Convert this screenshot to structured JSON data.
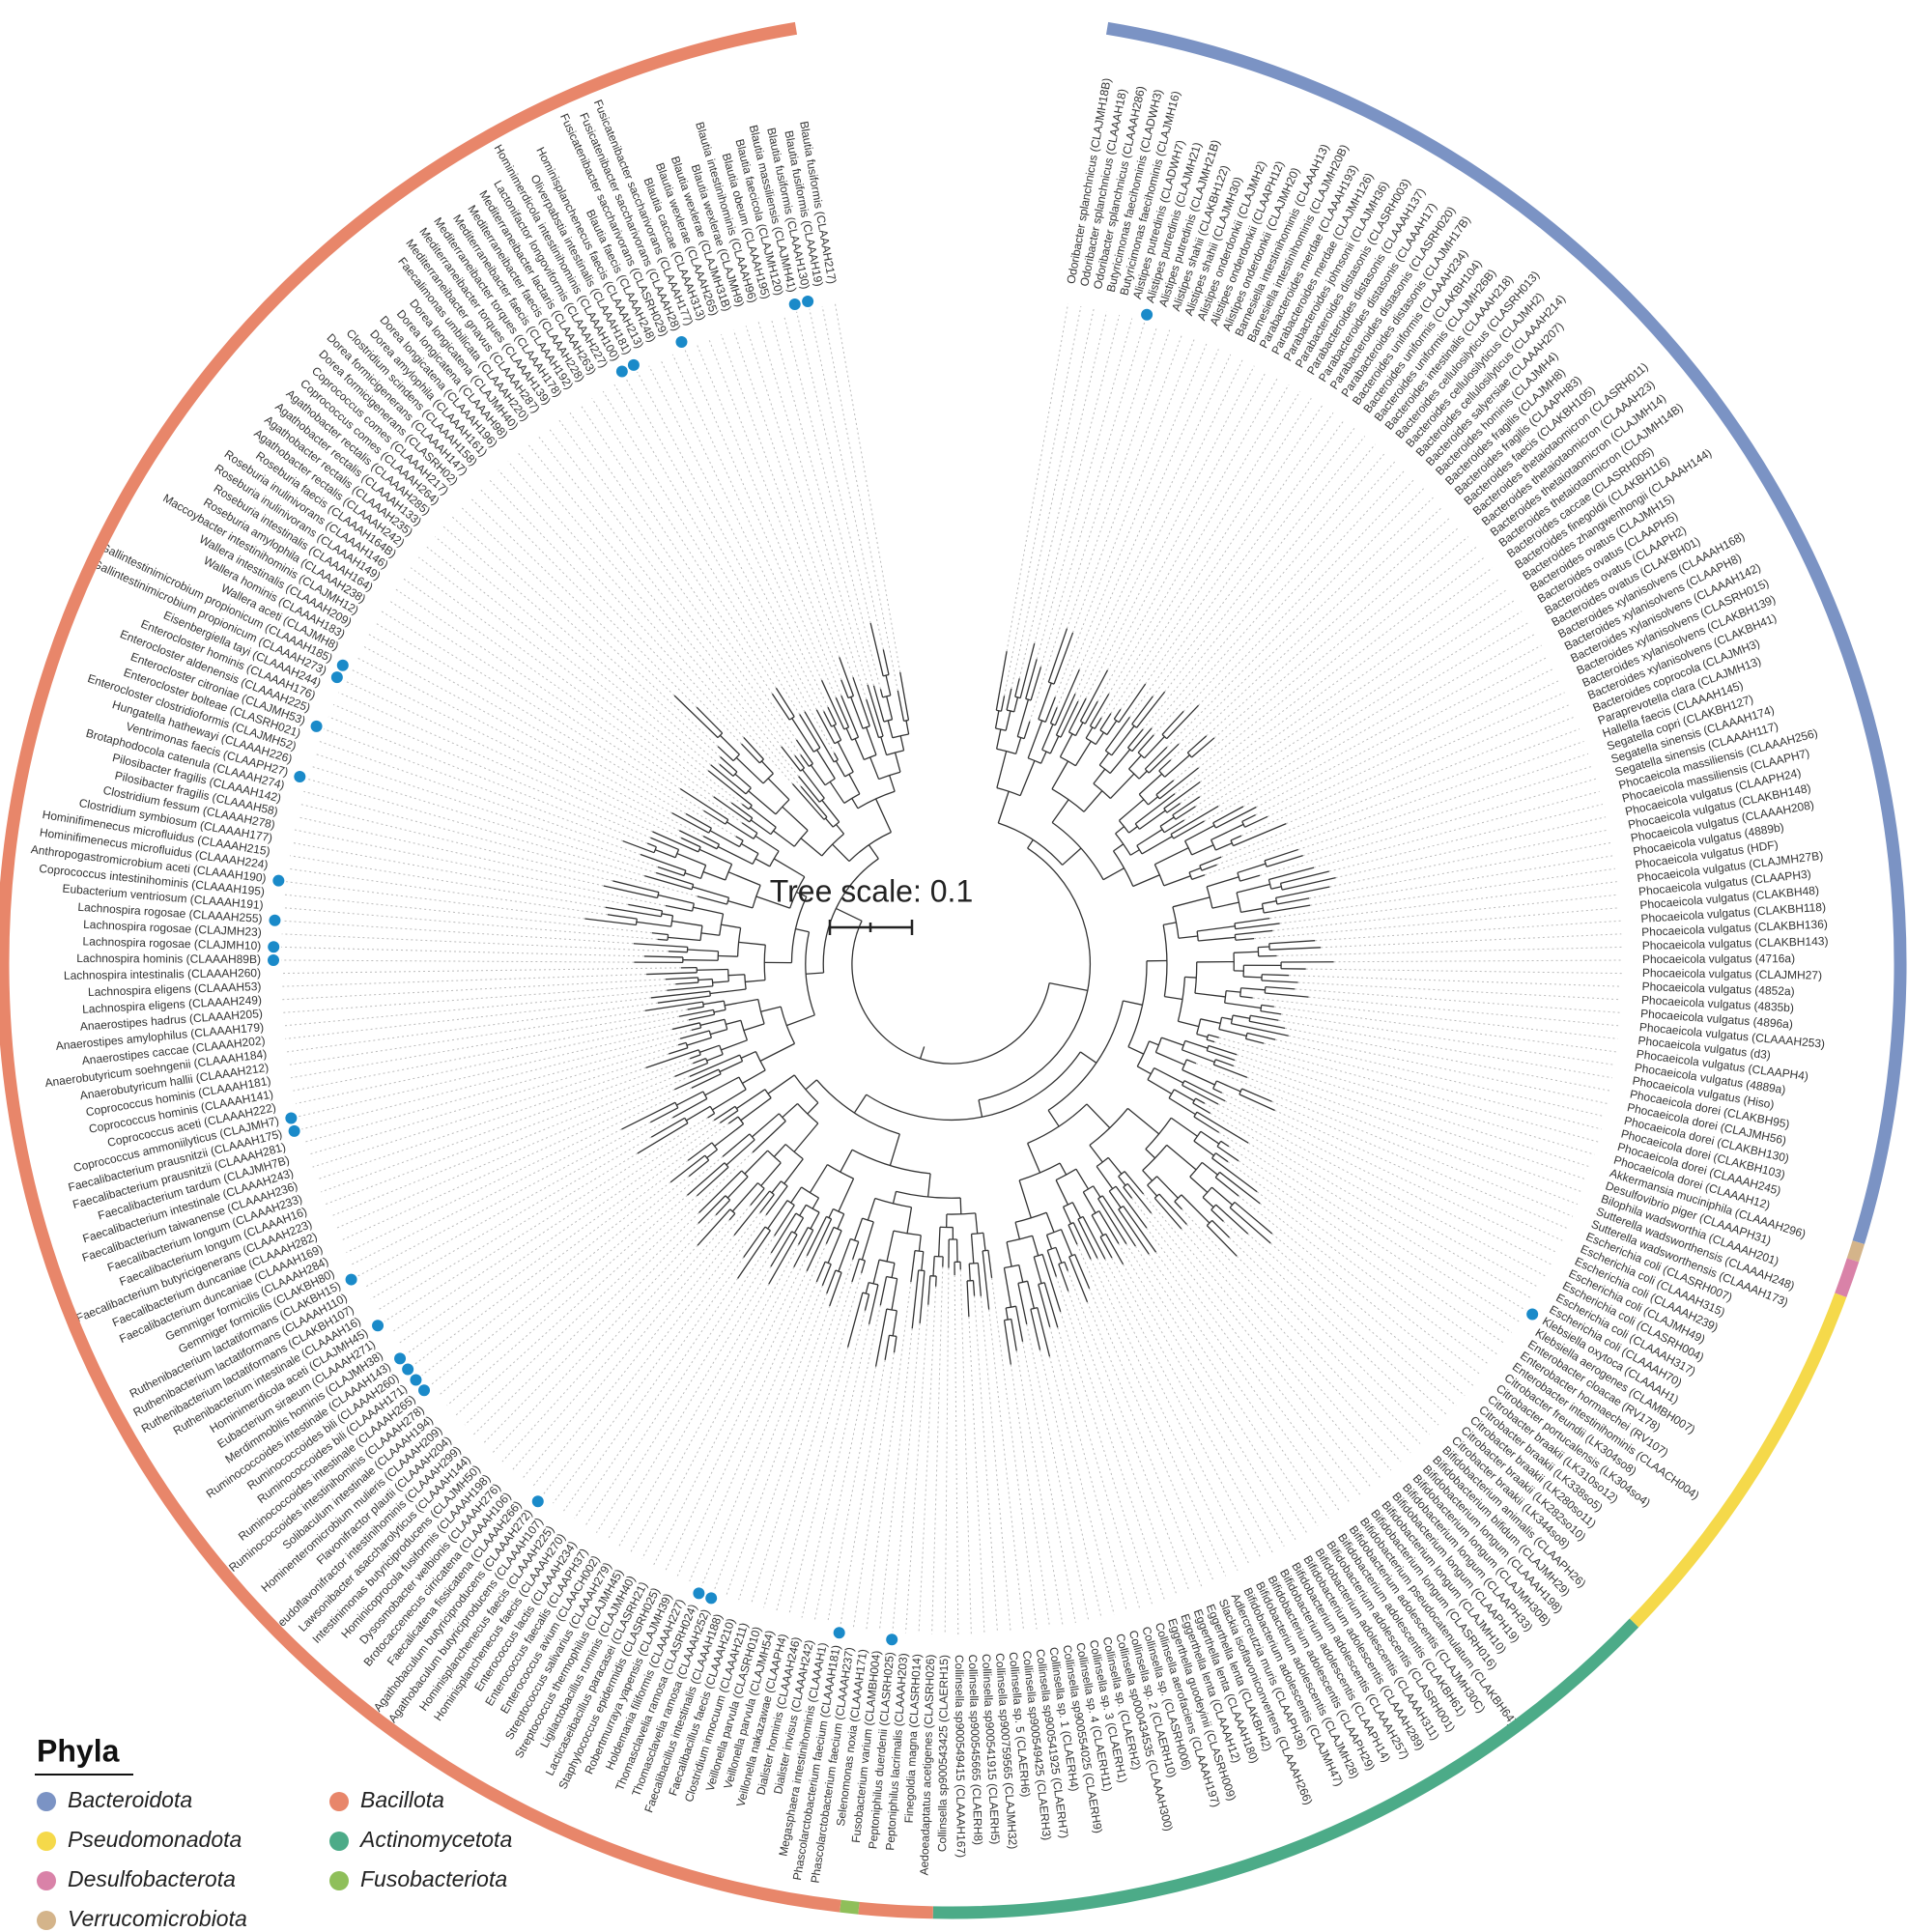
{
  "tree_scale": "Tree scale: 0.1",
  "legend": {
    "title": "Phyla",
    "phyla": [
      {
        "name": "Bacteroidota",
        "color": "#7b93c4"
      },
      {
        "name": "Bacillota",
        "color": "#e8866a"
      },
      {
        "name": "Pseudomonadota",
        "color": "#f5d94a"
      },
      {
        "name": "Actinomycetota",
        "color": "#4cab88"
      },
      {
        "name": "Desulfobacterota",
        "color": "#d982a8"
      },
      {
        "name": "Fusobacteriota",
        "color": "#8fbf5a"
      },
      {
        "name": "Verrucomicrobiota",
        "color": "#d4b48a"
      }
    ]
  },
  "leaf_groups": [
    {
      "phylum": "Bacteroidota",
      "leaves": [
        "Odoribacter splanchnicus (CLAJMH18B)",
        "Odoribacter splanchnicus (CLAAAH18)",
        "Odoribacter splanchnicus (CLAAAH286)",
        "Butyricimonas faecihominis (CLADWH3)",
        "Butyricimonas faecihominis (CLAJMH16)",
        "Alistipes putredinis (CLADWH7)",
        {
          "label": "Alistipes putredinis (CLAJMH21)",
          "dot": true
        },
        "Alistipes putredinis (CLAJMH21B)",
        "Alistipes shahii (CLAKBH122)",
        "Alistipes shahii (CLAJMH30)",
        "Alistipes onderdonkii (CLAJMH2)",
        "Alistipes onderdonkii (CLAAPH12)",
        "Alistipes onderdonkii (CLAJMH20)",
        "Barnesiella intestinihominis (CLAAAH13)",
        "Barnesiella intestinihominis (CLAJMH20B)",
        "Parabacteroides merdae (CLAAAH193)",
        "Parabacteroides merdae (CLAJMH126)",
        "Parabacteroides johnsonii (CLAJMH36)",
        "Parabacteroides distasonis (CLASRH003)",
        "Parabacteroides distasonis (CLAAAH137)",
        "Parabacteroides distasonis (CLAAAH17)",
        "Parabacteroides distasonis (CLASRH020)",
        "Parabacteroides distasonis (CLAJMH17B)",
        "Bacteroides uniformis (CLAAAH234)",
        "Bacteroides uniformis (CLAKBH104)",
        "Bacteroides uniformis (CLAJMH26B)",
        "Bacteroides intestinalis (CLAAAH218)",
        "Bacteroides cellulosilyticus (CLASRH013)",
        "Bacteroides cellulosilyticus (CLAJMH2)",
        "Bacteroides cellulosilyticus (CLAAAH214)",
        "Bacteroides salyersiae (CLAAAH207)",
        "Bacteroides hominis (CLAJMH4)",
        "Bacteroides fragilis (CLAJMH8)",
        "Bacteroides fragilis (CLAAPH83)",
        "Bacteroides faecis (CLAKBH105)",
        "Bacteroides thetaiotaomicron (CLASRH011)",
        "Bacteroides thetaiotaomicron (CLAAAH23)",
        "Bacteroides thetaiotaomicron (CLAJMH14)",
        "Bacteroides thetaiotaomicron (CLAJMH14B)",
        "Bacteroides caccae (CLASRH005)",
        "Bacteroides finegoldii (CLAKBH116)",
        "Bacteroides zhangwenhongii (CLAAAH144)",
        "Bacteroides ovatus (CLAJMH15)",
        "Bacteroides ovatus (CLAAPH5)",
        "Bacteroides ovatus (CLAAPH2)",
        "Bacteroides ovatus (CLAKBH01)",
        "Bacteroides xylanisolvens (CLAAAH168)",
        "Bacteroides xylanisolvens (CLAAPH8)",
        "Bacteroides xylanisolvens (CLAAAH142)",
        "Bacteroides xylanisolvens (CLASRH015)",
        "Bacteroides xylanisolvens (CLAKBH139)",
        "Bacteroides xylanisolvens (CLAKBH41)",
        "Bacteroides coprocola (CLAJMH3)",
        "Paraprevotella clara (CLAJMH13)",
        "Hallella faecis (CLAAAH145)",
        "Segatella copri (CLAKBH127)",
        "Segatella sinensis (CLAAAH174)",
        "Segatella sinensis (CLAAAH117)",
        "Phocaeicola massiliensis (CLAAAH256)",
        "Phocaeicola massiliensis (CLAAPH7)",
        "Phocaeicola vulgatus (CLAAPH24)",
        "Phocaeicola vulgatus (CLAKBH148)",
        "Phocaeicola vulgatus (CLAAAH208)",
        "Phocaeicola vulgatus (4889b)",
        "Phocaeicola vulgatus (HDF)",
        "Phocaeicola vulgatus (CLAJMH27B)",
        "Phocaeicola vulgatus (CLAAPH3)",
        "Phocaeicola vulgatus (CLAKBH48)",
        "Phocaeicola vulgatus (CLAKBH118)",
        "Phocaeicola vulgatus (CLAKBH136)",
        "Phocaeicola vulgatus (CLAKBH143)",
        "Phocaeicola vulgatus (4716a)",
        "Phocaeicola vulgatus (CLAJMH27)",
        "Phocaeicola vulgatus (4852a)",
        "Phocaeicola vulgatus (4835b)",
        "Phocaeicola vulgatus (4896a)",
        "Phocaeicola vulgatus (CLAAAH253)",
        "Phocaeicola vulgatus (d3)",
        "Phocaeicola vulgatus (CLAAPH4)",
        "Phocaeicola vulgatus (4889a)",
        "Phocaeicola vulgatus (Hiso)",
        "Phocaeicola dorei (CLAKBH95)",
        "Phocaeicola dorei (CLAJMH56)",
        "Phocaeicola dorei (CLAKBH130)",
        "Phocaeicola dorei (CLAKBH103)",
        "Phocaeicola dorei (CLAAAH245)",
        "Phocaeicola dorei (CLAAAH12)"
      ]
    },
    {
      "phylum": "Verrucomicrobiota",
      "leaves": [
        "Akkermansia muciniphila (CLAAAH296)"
      ]
    },
    {
      "phylum": "Desulfobacterota",
      "leaves": [
        "Desulfovibrio piger (CLAAAPH31)",
        "Bilophila wadsworthia (CLAAAH201)"
      ]
    },
    {
      "phylum": "Pseudomonadota",
      "leaves": [
        "Sutterella wadsworthensis (CLAAAH248)",
        "Sutterella wadsworthensis (CLAAAH173)",
        "Escherichia coli (CLASRH007)",
        "Escherichia coli (CLAAAH315)",
        "Escherichia coli (CLAAAH239)",
        "Escherichia coli (CLAJMH49)",
        "Escherichia coli (CLASRH004)",
        "Escherichia coli (CLAAAH317)",
        "Escherichia coli (CLAAAH70)",
        {
          "label": "Klebsiella oxytoca (CLAAAH1)",
          "dot": true
        },
        "Klebsiella aerogenes (CLAMBH007)",
        "Enterobacter cloacae (RV178)",
        "Enterobacter hormaechei (RV107)",
        "Enterobacter intestinihominis (CLAACH004)",
        "Citrobacter freundii (LK304so8)",
        "Citrobacter portucalensis (LK304so4)",
        "Citrobacter braakii (LK310so12)",
        "Citrobacter braakii (LK338so5)",
        "Citrobacter braakii (LK280so11)",
        "Citrobacter braakii (LK282so10)",
        "Citrobacter braakii (LK344so8)"
      ]
    },
    {
      "phylum": "Actinomycetota",
      "leaves": [
        "Bifidobacterium animalis (CLAAPH26)",
        "Bifidobacterium bifidum (CLAJMH29)",
        "Bifidobacterium longum (CLAAAH198)",
        "Bifidobacterium longum (CLAJMH30B)",
        "Bifidobacterium longum (CLAAPH33)",
        "Bifidobacterium longum (CLAAPH19)",
        "Bifidobacterium longum (CLAJMH10)",
        "Bifidobacterium longum (CLASRH016)",
        "Bifidobacterium pseudocatenulatum (CLAKBH64)",
        "Bifidobacterium adolescentis (CLAJMH30C)",
        "Bifidobacterium adolescentis (CLAKBH61)",
        "Bifidobacterium adolescentis (CLASRH001)",
        "Bifidobacterium adolescentis (CLAAAH311)",
        "Bifidobacterium adolescentis (CLAAAH289)",
        "Bifidobacterium adolescentis (CLAAAH257)",
        "Bifidobacterium adolescentis (CLAAPH14)",
        "Bifidobacterium adolescentis (CLAAPH29)",
        "Bifidobacterium adolescentis (CLAJMH28)",
        "Bifidobacterium adolescentis (CLAJMH47)",
        "Adlercreutzia muris (CLAAPH36)",
        "Slackia isoflavoniconvertens (CLAAAH266)",
        "Eggerthella lenta (CLAKBH42)",
        "Eggerthella lenta (CLAAAH180)",
        "Eggerthella lenta (CLAAAH12)",
        "Eggerthella guodeyinii (CLASRH009)",
        "Collinsella aerofaciens (CLAAAH197)",
        "Collinsella sp. (CLASRH006)",
        "Collinsella sp. 2 (CLAERH10)",
        "Collinsella sp000434535 (CLAAAH300)",
        "Collinsella sp. (CLAERH2)",
        "Collinsella sp. 3 (CLAERH1)",
        "Collinsella sp. 4 (CLAERH11)",
        "Collinsella sp900554025 (CLAERH9)",
        "Collinsella sp. 1 (CLAERH4)",
        "Collinsella sp900541925 (CLAERH7)",
        "Collinsella sp900549425 (CLAERH3)",
        "Collinsella sp. 5 (CLAERH6)",
        "Collinsella sp900759565 (CLAJMH32)",
        "Collinsella sp900541915 (CLAERH5)",
        "Collinsella sp900545665 (CLAERH8)",
        "Collinsella sp900549415 (CLAAAH167)",
        "Collinsella sp900543425 (CLAERH15)"
      ]
    },
    {
      "phylum": "Bacillota",
      "leaves": [
        "Aedoeadaptatus acetigenes (CLASRH026)",
        "Finegoldia magna (CLASRH014)",
        "Peptoniphilus lacrimalis (CLAAAH203)",
        {
          "label": "Peptoniphilus duerdenii (CLASRH025)",
          "dot": true
        }
      ]
    },
    {
      "phylum": "Fusobacteriota",
      "leaves": [
        "Fusobacterium varium (CLAMBH004)"
      ]
    },
    {
      "phylum": "Bacillota",
      "leaves": [
        "Selenomonas noxia (CLAAAH171)",
        "Phascolarctobacterium faecium (CLAAAH237)",
        {
          "label": "Phascolarctobacterium faecium (CLAAAH181)",
          "dot": true
        },
        "Megasphaera intestinihominis (CLAAAH1)",
        "Dialister invisus (CLAAAH242)",
        "Dialister hominis (CLAAAH246)",
        "Veillonella nakazawae (CLAAPH4)",
        "Veillonella parvula (CLAJMH54)",
        "Veillonella parvula (CLASRH010)",
        "Clostridium innocuum (CLAAAH211)",
        "Faecalibacillus faecis (CLAAAH210)",
        "Faecalibacillus intestinalis (CLAAAH188)",
        {
          "label": "Thomasclavelia ramosa (CLAAAH252)",
          "dot": true
        },
        {
          "label": "Thomasclavelia ramosa (CLASRH024)",
          "dot": true
        },
        "Holdemania filiformis (CLAAAH227)",
        "Robertmurraya yapensis (CLAJMH39)",
        "Staphylococcus epidermidis (CLASRH025)",
        "Lacticaseibacillus paracasei (CLASRH21)",
        "Ligilactobacillus ruminis (CLAJMH40)",
        "Streptococcus thermophilus (CLAJMH45)",
        "Streptococcus salivarius (CLAAAH279)",
        "Enterococcus avium (CLAACH002)",
        "Enterococcus faecalis (CLAAPH37)",
        "Enterococcus lactis (CLAAAH234)",
        "Hominisplanchenecus faecis (CLAAAH270)",
        "Hominisplanchenecus faecis (CLAAAH225)",
        "Agathobaculum butyriciproducens (CLAAAH107)",
        {
          "label": "Agathobaculum butyriciproducens (CLAAAH272)",
          "dot": true
        },
        "Faecalicatena fissicatena (CLAAAH266)",
        "Brotocaccenecus cirricatena (CLAAAH106)",
        "Dysosmobacter welbionis (CLAAAH276)",
        "Hominicoprocola fusiformis (CLAAAH198)",
        "Intestinimonas butyriciproducens (CLAJMH50)",
        "Lawsonibacter asaccharolyticus (CLAAAH144)",
        "Pseudoflavonifractor intestinihominis (CLAAAH299)",
        "Flavonifractor plautii (CLAAAH204)",
        "Hominenteromicrobium mulieris (CLAAAH209)",
        "Solibaculum intestinale (CLAAAH194)",
        "Ruminococcoides intestinihominis (CLAAAH278)",
        {
          "label": "Ruminococcoides intestinale (CLAAAH265)",
          "dot": true
        },
        {
          "label": "Ruminococcoides bili (CLAAAH171)",
          "dot": true
        },
        {
          "label": "Ruminococcoides bili (CLAAAH260)",
          "dot": true
        },
        {
          "label": "Ruminococcoides intestinale (CLAAAH143)",
          "dot": true
        },
        "Merdimmobilis hominis (CLAJMH38)",
        "Eubacterium siraeum (CLAAAH271)",
        {
          "label": "Hominimerdicola aceti (CLAJMH45)",
          "dot": true
        },
        "Ruthenibacterium intestinale (CLAAAH16)",
        "Ruthenibacterium lactatiformans (CLAKBH107)",
        "Ruthenibacterium lactatiformans (CLAAAH110)",
        {
          "label": "Ruthenibacterium lactatiformans (CLAKBH15)",
          "dot": true
        },
        "Gemmiger formicilis (CLAKBH80)",
        "Gemmiger formicilis (CLAAAH284)",
        "Faecalibacterium duncaniae (CLAAAH169)",
        "Faecalibacterium duncaniae (CLAAAH282)",
        "Faecalibacterium butyricigenerans (CLAAAH223)",
        "Faecalibacterium longum (CLAAAH16)",
        "Faecalibacterium longum (CLAAAH233)",
        "Faecalibacterium taiwanense (CLAAAH236)",
        "Faecalibacterium intestinale (CLAAAH243)",
        "Faecalibacterium tardum (CLAJMH7B)",
        "Faecalibacterium prausnitzii (CLAAAH281)",
        {
          "label": "Faecalibacterium prausnitzii (CLAAAH175)",
          "dot": true
        },
        {
          "label": "Coprococcus ammoniilyticus (CLAJMH7)",
          "dot": true
        },
        "Coprococcus aceti (CLAAAH222)",
        "Coprococcus hominis (CLAAAH141)",
        "Coprococcus hominis (CLAAAH181)",
        "Anaerobutyricum hallii (CLAAAH212)",
        "Anaerobutyricum soehngenii (CLAAAH184)",
        "Anaerostipes caccae (CLAAAH202)",
        "Anaerostipes amylophilus (CLAAAH179)",
        "Anaerostipes hadrus (CLAAAH205)",
        "Lachnospira eligens (CLAAAH249)",
        "Lachnospira eligens (CLAAAH53)",
        "Lachnospira intestinalis (CLAAAH260)",
        {
          "label": "Lachnospira hominis (CLAAAH89B)",
          "dot": true
        },
        {
          "label": "Lachnospira rogosae (CLAJMH10)",
          "dot": true
        },
        "Lachnospira rogosae (CLAJMH23)",
        {
          "label": "Lachnospira rogosae (CLAAAH255)",
          "dot": true
        },
        "Eubacterium ventriosum (CLAAAH191)",
        "Coprococcus intestinihominis (CLAAAH195)",
        {
          "label": "Anthropogastromicrobium aceti (CLAAAH190)",
          "dot": true
        },
        "Hominifimenecus microfluidus (CLAAAH224)",
        "Hominifimenecus microfluidus (CLAAAH215)",
        "Clostridium symbiosum (CLAAAH177)",
        "Clostridium fessum (CLAAAH278)",
        "Pilosibacter fragilis (CLAAAH58)",
        "Pilosibacter fragilis (CLAAAH142)",
        "Brotaphodocola catenula (CLAAAH274)",
        {
          "label": "Ventrimonas faecis (CLAAPH27)",
          "dot": true
        },
        "Hungatella hathewayi (CLAAAH226)",
        "Enterocloster clostridioformis (CLAJMH52)",
        "Enterocloster bolteae (CLASRH021)",
        {
          "label": "Enterocloster citroniae (CLAJMH53)",
          "dot": true
        },
        "Enterocloster aldenensis (CLAAAH225)",
        "Enterocloster hominis (CLAAAH176)",
        "Eisenbergiella tayi (CLAAAH244)",
        {
          "label": "Gallintestinimicrobium propionicum (CLAAAH273)",
          "dot": true
        },
        {
          "label": "Gallintestinimicrobium propionicum (CLAAAH185)",
          "dot": true
        },
        "Wallera aceti (CLAJMH8)",
        "Wallera hominis (CLAAAH183)",
        "Wallera intestinalis (CLAAAH209)",
        "Maccoybacter intestinihominis (CLAJMH12)",
        "Roseburia amylophila (CLAAAH238)",
        "Roseburia intestinalis (CLAAAH164)",
        "Roseburia inulinivorans (CLAAAH149)",
        "Roseburia inulinivorans (CLAAAH146)",
        "Roseburia faecis (CLAAAH164B)",
        "Agathobacter rectalis (CLAAAH242)",
        "Agathobacter rectalis (CLAAAH235)",
        "Agathobacter rectalis (CLAAAH133)",
        "Agathobacter rectalis (CLAAAH285)",
        "Coprococcus comes (CLAAAH264)",
        "Coprococcus comes (CLAAAH217)",
        "Dorea formicigenerans (CLASRH02)",
        "Dorea formicigenerans (CLAAAH147)",
        "Clostridium scindens (CLAAAH158)",
        "Dorea amylophila (CLAAAH161)",
        "Dorea longicatena (CLAAAH196)",
        "Dorea longicatena (CLAAAH98)",
        "Dorea longicatena (CLAJMH40)",
        "Faecalimonas umbilicata (CLAAAH220)",
        "Mediterraneibacter gnavus (CLAAAH287)",
        "Mediterraneibacter torques (CLAAAH139)",
        "Mediterraneibacter torques (CLAAAH178)",
        "Mediterraneibacter faecis (CLAAAH192)",
        "Mediterraneibacter faecis (CLAAAH228)",
        "Mediterraneibacter lactaris (CLAAAH263)",
        "Lactonifactor longoviformis (CLAAAH227)",
        {
          "label": "Hominimerdicola intestinihominis (CLAAAH100)",
          "dot": true
        },
        {
          "label": "Oliverpabstia intestinalis (CLAAAH181)",
          "dot": true
        },
        "Hominisplanchenecus faecis (CLAAAH213)",
        "Blautia faecis (CLAAAH248)",
        "Fusicatenibacter saccharivorans (CLASRH029)",
        {
          "label": "Fusicatenibacter saccharivorans (CLAAAH28)",
          "dot": true
        },
        "Fusicatenibacter saccharivorans (CLAAAH177)",
        "Blautia caccae (CLAAAH313)",
        "Blautia wexlerae (CLAAAH265)",
        "Blautia wexlerae (CLAJMH31B)",
        "Blautia wexlerae (CLAJMH9)",
        "Blautia intestinihominis (CLAAAH96)",
        "Blautia obeum (CLAAAH195)",
        "Blautia faecicola (CLAJMH120)",
        {
          "label": "Blautia massiliensis (CLAJMH41)",
          "dot": true
        },
        {
          "label": "Blautia fusiformis (CLAAAH130)",
          "dot": true
        },
        "Blautia fusiformis (CLAAAH19)",
        "Blautia fusiformis (CLAAAH217)"
      ]
    }
  ]
}
